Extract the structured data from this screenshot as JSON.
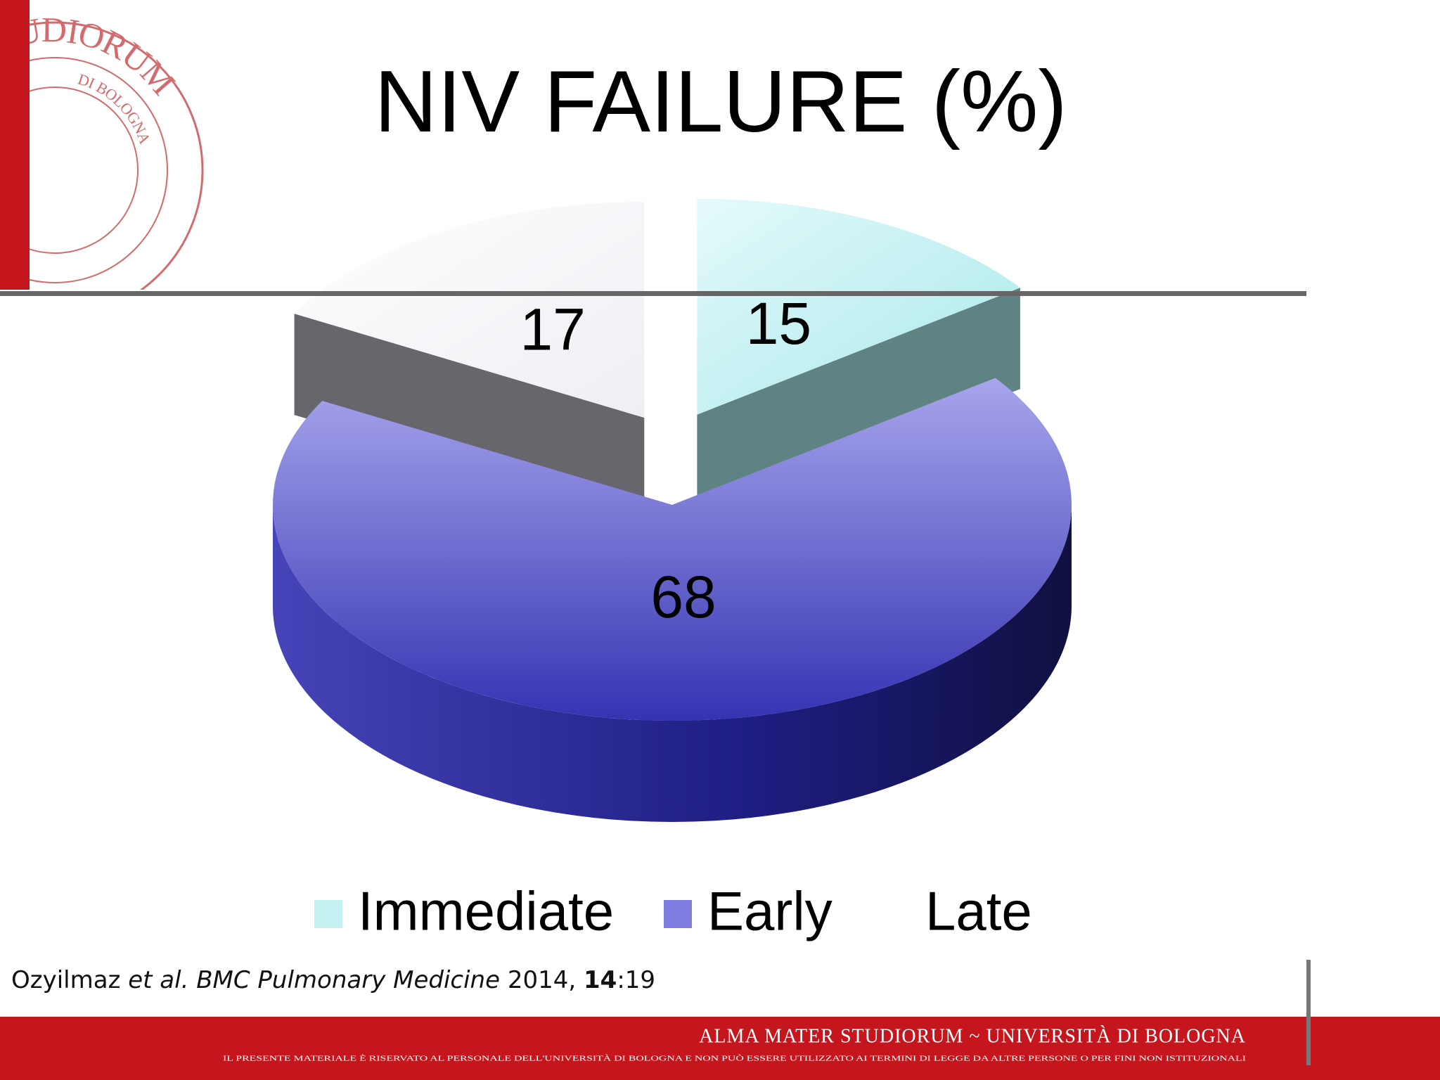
{
  "chart_data": {
    "type": "pie",
    "title": "NIV FAILURE (%)",
    "categories": [
      "Immediate",
      "Early",
      "Late"
    ],
    "values": [
      15,
      68,
      17
    ],
    "colors": [
      "#c4f2f2",
      "#7f7de0",
      "#ffffff"
    ],
    "explode": [
      true,
      false,
      true
    ],
    "legend": "bottom"
  },
  "citation": {
    "author": "Ozyilmaz",
    "etal": "et al.",
    "journal": "BMC Pulmonary Medicine",
    "year": "2014,",
    "volume": "14",
    "page": ":19"
  },
  "seal": {
    "outer": "STUDIORUM",
    "inner": "DI BOLOGNA"
  },
  "footer": {
    "title": "ALMA MATER STUDIORUM ~ UNIVERSITÀ DI BOLOGNA",
    "notice": "IL PRESENTE MATERIALE È RISERVATO AL PERSONALE DELL'UNIVERSITÀ DI BOLOGNA E NON PUÒ ESSERE UTILIZZATO AI TERMINI DI LEGGE DA ALTRE PERSONE O PER FINI NON ISTITUZIONALI"
  }
}
